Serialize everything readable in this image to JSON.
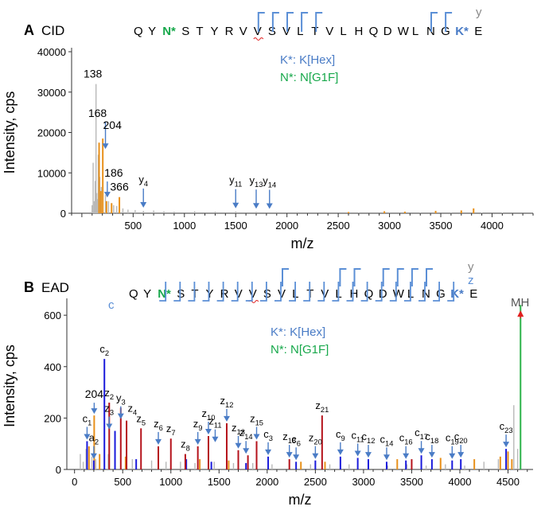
{
  "colors": {
    "blue": "#1a1adb",
    "red": "#b5121b",
    "orange": "#e8901a",
    "gray": "#b8b8b8",
    "green": "#2db34a",
    "annot_blue": "#4a7cc6",
    "annot_green": "#17a84b",
    "frag_blue": "#5b8fd6",
    "arrow_red": "#e02020"
  },
  "chart_data": [
    {
      "type": "bar",
      "panel": "A",
      "title": "CID",
      "xlabel": "m/z",
      "ylabel": "Intensity, cps",
      "xlim": [
        -100,
        4400
      ],
      "ylim": [
        0,
        40000
      ],
      "xticks": [
        "500",
        "1000",
        "1500",
        "2000",
        "2500",
        "3000",
        "3500",
        "4000"
      ],
      "yticks": [
        "0",
        "10000",
        "20000",
        "30000",
        "40000"
      ],
      "sequence": [
        "Q",
        "Y",
        "N*",
        "S",
        "T",
        "Y",
        "R",
        "V",
        "V",
        "S",
        "V",
        "L",
        "T",
        "V",
        "L",
        "H",
        "Q",
        "D",
        "W",
        "L",
        "N",
        "G",
        "K*",
        "E"
      ],
      "ion_series_label": "y",
      "legend": [
        "K*: K[Hex]",
        "N*: N[G1F]"
      ],
      "series": [
        {
          "color": "gray",
          "x": [
            100,
            110,
            120,
            130,
            138,
            145,
            150,
            160,
            175,
            190,
            230,
            260,
            290,
            310,
            340,
            400,
            450,
            520,
            600,
            700,
            800,
            900,
            1100,
            1300,
            1500,
            1700,
            1900,
            2100,
            2400,
            2700,
            3000,
            3300,
            3600,
            3900,
            4100
          ],
          "y": [
            2000,
            12500,
            3000,
            8000,
            32000,
            5000,
            3500,
            14500,
            9000,
            6500,
            4500,
            3000,
            2500,
            2000,
            1800,
            1200,
            900,
            800,
            600,
            700,
            500,
            400,
            500,
            400,
            450,
            350,
            300,
            300,
            250,
            200,
            250,
            200,
            200,
            150,
            150
          ]
        },
        {
          "color": "orange",
          "x": [
            168,
            186,
            204,
            240,
            290,
            366,
            2600,
            2950,
            3150,
            3450,
            3700,
            3820
          ],
          "y": [
            17500,
            5500,
            18500,
            3000,
            2500,
            4000,
            300,
            500,
            400,
            600,
            700,
            1200
          ]
        }
      ],
      "labels": [
        {
          "text": "138",
          "x": 138,
          "y": 32000
        },
        {
          "text": "168",
          "x": 168,
          "y": 17500
        },
        {
          "text": "204",
          "x": 204,
          "y": 18500
        },
        {
          "text": "186",
          "x": 186,
          "y": 5500
        },
        {
          "text": "366",
          "x": 366,
          "y": 4000
        },
        {
          "text": "y",
          "sub": "4",
          "x": 600,
          "y": 600
        },
        {
          "text": "y",
          "sub": "11",
          "x": 1500,
          "y": 450
        },
        {
          "text": "y",
          "sub": "13",
          "x": 1700,
          "y": 350
        },
        {
          "text": "y",
          "sub": "14",
          "x": 1830,
          "y": 300
        }
      ]
    },
    {
      "type": "bar",
      "panel": "B",
      "title": "EAD",
      "xlabel": "m/z",
      "ylabel": "Intensity, cps",
      "xlim": [
        -80,
        4760
      ],
      "ylim": [
        0,
        650
      ],
      "xticks": [
        "0",
        "500",
        "1000",
        "1500",
        "2000",
        "2500",
        "3000",
        "3500",
        "4000",
        "4500"
      ],
      "yticks": [
        "0",
        "200",
        "400",
        "600"
      ],
      "sequence": [
        "Q",
        "Y",
        "N*",
        "S",
        "T",
        "Y",
        "R",
        "V",
        "V",
        "S",
        "V",
        "L",
        "T",
        "V",
        "L",
        "H",
        "Q",
        "D",
        "W",
        "L",
        "N",
        "G",
        "K*",
        "E"
      ],
      "ion_series_label": [
        "y",
        "z",
        "c"
      ],
      "legend": [
        "K*: K[Hex]",
        "N*: N[G1F]"
      ],
      "precursor_label": "MH",
      "series": [
        {
          "color": "gray",
          "x": [
            60,
            90,
            120,
            180,
            220,
            350,
            420,
            600,
            800,
            950,
            1100,
            1250,
            1450,
            1650,
            1850,
            2050,
            2300,
            2450,
            2650,
            2850,
            3050,
            3250,
            3450,
            3650,
            3850,
            4050,
            4250,
            4400,
            4560,
            4600
          ],
          "y": [
            60,
            30,
            80,
            50,
            40,
            60,
            45,
            40,
            35,
            30,
            30,
            25,
            30,
            25,
            25,
            20,
            25,
            20,
            20,
            20,
            20,
            15,
            20,
            15,
            20,
            15,
            30,
            40,
            250,
            80
          ]
        },
        {
          "color": "orange",
          "x": [
            150,
            204,
            260,
            530,
            1300,
            1600,
            2350,
            2600,
            3350,
            3800,
            4150,
            4420,
            4500,
            4540
          ],
          "y": [
            90,
            210,
            60,
            50,
            40,
            35,
            30,
            30,
            40,
            45,
            40,
            50,
            70,
            40
          ]
        },
        {
          "color": "blue",
          "x": [
            130,
            200,
            310,
            420,
            640,
            1160,
            1420,
            1780,
            2010,
            2300,
            2500,
            2760,
            2940,
            3050,
            3240,
            3440,
            3600,
            3710,
            3920,
            4010,
            4480
          ],
          "y": [
            110,
            35,
            430,
            150,
            40,
            40,
            30,
            25,
            50,
            30,
            35,
            50,
            45,
            40,
            30,
            35,
            55,
            40,
            35,
            40,
            80
          ]
        },
        {
          "color": "red",
          "x": [
            360,
            480,
            540,
            690,
            870,
            1000,
            1150,
            1280,
            1390,
            1580,
            1700,
            1800,
            1890,
            2230,
            2570,
            3500
          ],
          "y": [
            260,
            240,
            190,
            160,
            90,
            120,
            60,
            90,
            130,
            180,
            75,
            55,
            110,
            40,
            210,
            40
          ]
        },
        {
          "color": "green",
          "x": [
            4630
          ],
          "y": [
            640
          ]
        }
      ],
      "labels": [
        {
          "text": "c",
          "sub": "2",
          "x": 310,
          "y": 430
        },
        {
          "text": "204",
          "x": 204,
          "y": 210
        },
        {
          "text": "c",
          "sub": "1",
          "x": 130,
          "y": 110
        },
        {
          "text": "a",
          "sub": "2",
          "x": 200,
          "y": 35
        },
        {
          "text": "z",
          "sub": "2",
          "x": 360,
          "y": 260
        },
        {
          "text": "z",
          "sub": "3",
          "x": 360,
          "y": 150
        },
        {
          "text": "y",
          "sub": "3",
          "x": 480,
          "y": 190
        },
        {
          "text": "z",
          "sub": "4",
          "x": 600,
          "y": 200
        },
        {
          "text": "z",
          "sub": "5",
          "x": 690,
          "y": 160
        },
        {
          "text": "z",
          "sub": "6",
          "x": 870,
          "y": 90
        },
        {
          "text": "z",
          "sub": "7",
          "x": 1000,
          "y": 120
        },
        {
          "text": "z",
          "sub": "8",
          "x": 1150,
          "y": 60
        },
        {
          "text": "z",
          "sub": "9",
          "x": 1280,
          "y": 90
        },
        {
          "text": "z",
          "sub": "10",
          "x": 1390,
          "y": 130
        },
        {
          "text": "z",
          "sub": "11",
          "x": 1460,
          "y": 100
        },
        {
          "text": "z",
          "sub": "12",
          "x": 1580,
          "y": 180
        },
        {
          "text": "z",
          "sub": "13",
          "x": 1700,
          "y": 75
        },
        {
          "text": "z",
          "sub": "14",
          "x": 1780,
          "y": 55
        },
        {
          "text": "z",
          "sub": "15",
          "x": 1890,
          "y": 110
        },
        {
          "text": "c",
          "sub": "3",
          "x": 2010,
          "y": 50
        },
        {
          "text": "z",
          "sub": "18",
          "x": 2230,
          "y": 40
        },
        {
          "text": "c",
          "sub": "6",
          "x": 2300,
          "y": 30
        },
        {
          "text": "z",
          "sub": "20",
          "x": 2500,
          "y": 35
        },
        {
          "text": "z",
          "sub": "21",
          "x": 2570,
          "y": 210
        },
        {
          "text": "c",
          "sub": "9",
          "x": 2760,
          "y": 50
        },
        {
          "text": "c",
          "sub": "11",
          "x": 2940,
          "y": 45
        },
        {
          "text": "c",
          "sub": "12",
          "x": 3050,
          "y": 40
        },
        {
          "text": "c",
          "sub": "14",
          "x": 3240,
          "y": 30
        },
        {
          "text": "c",
          "sub": "16",
          "x": 3440,
          "y": 35
        },
        {
          "text": "c",
          "sub": "17",
          "x": 3600,
          "y": 55
        },
        {
          "text": "c",
          "sub": "18",
          "x": 3710,
          "y": 40
        },
        {
          "text": "c",
          "sub": "19",
          "x": 3920,
          "y": 35
        },
        {
          "text": "c",
          "sub": "20",
          "x": 4010,
          "y": 40
        },
        {
          "text": "c",
          "sub": "23",
          "x": 4480,
          "y": 80
        }
      ]
    }
  ]
}
